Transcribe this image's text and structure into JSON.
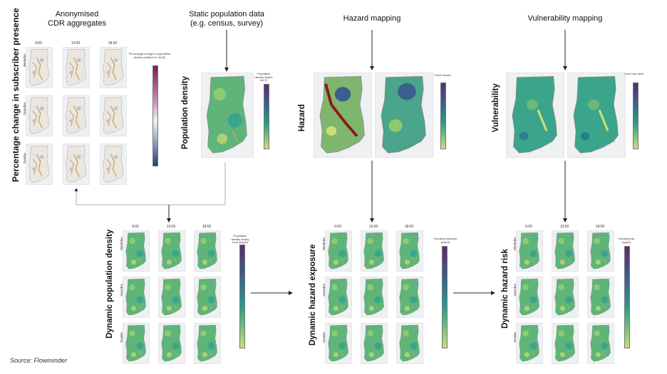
{
  "titles": {
    "cdr": "Anonymised\nCDR aggregates",
    "static_pop": "Static population data\n(e.g. census, survey)",
    "hazard_mapping": "Hazard mapping",
    "vulnerability_mapping": "Vulnerability mapping"
  },
  "labels": {
    "percentage_change": "Percentage change in subscriber presence",
    "population_density": "Population density",
    "hazard": "Hazard",
    "vulnerability": "Vulnerability",
    "dynamic_population_density": "Dynamic population density",
    "dynamic_hazard_exposure": "Dynamic hazard exposure",
    "dynamic_hazard_risk": "Dynamic hazard risk"
  },
  "times": [
    "9:00",
    "13:00",
    "18:00"
  ],
  "days": [
    "Weekday",
    "Saturday",
    "Sunday"
  ],
  "colorbars": {
    "cdr": {
      "title": "Percentage change in population density (relative to 18:00)"
    },
    "pop": {
      "title": "Population density (log10 km-2)"
    },
    "hazard": {
      "title": "Flood hazard"
    },
    "vuln": {
      "title": "Land use value"
    },
    "dyn_pop": {
      "title": "Population density during hour (log10)"
    },
    "dyn_exp": {
      "title": "Flooding exposure (log10)"
    },
    "dyn_risk": {
      "title": "Flooding risk (log10)"
    }
  },
  "colors": {
    "diverging_top": "#7b1a5c",
    "diverging_mid": "#f4f0f2",
    "diverging_bottom": "#1f3d78",
    "viridis_low": "#c8e07a",
    "viridis_mid": "#3aa58a",
    "viridis_high": "#5c2c6e",
    "river_red": "#8b1a1a"
  },
  "source": "Source: Flowminder"
}
